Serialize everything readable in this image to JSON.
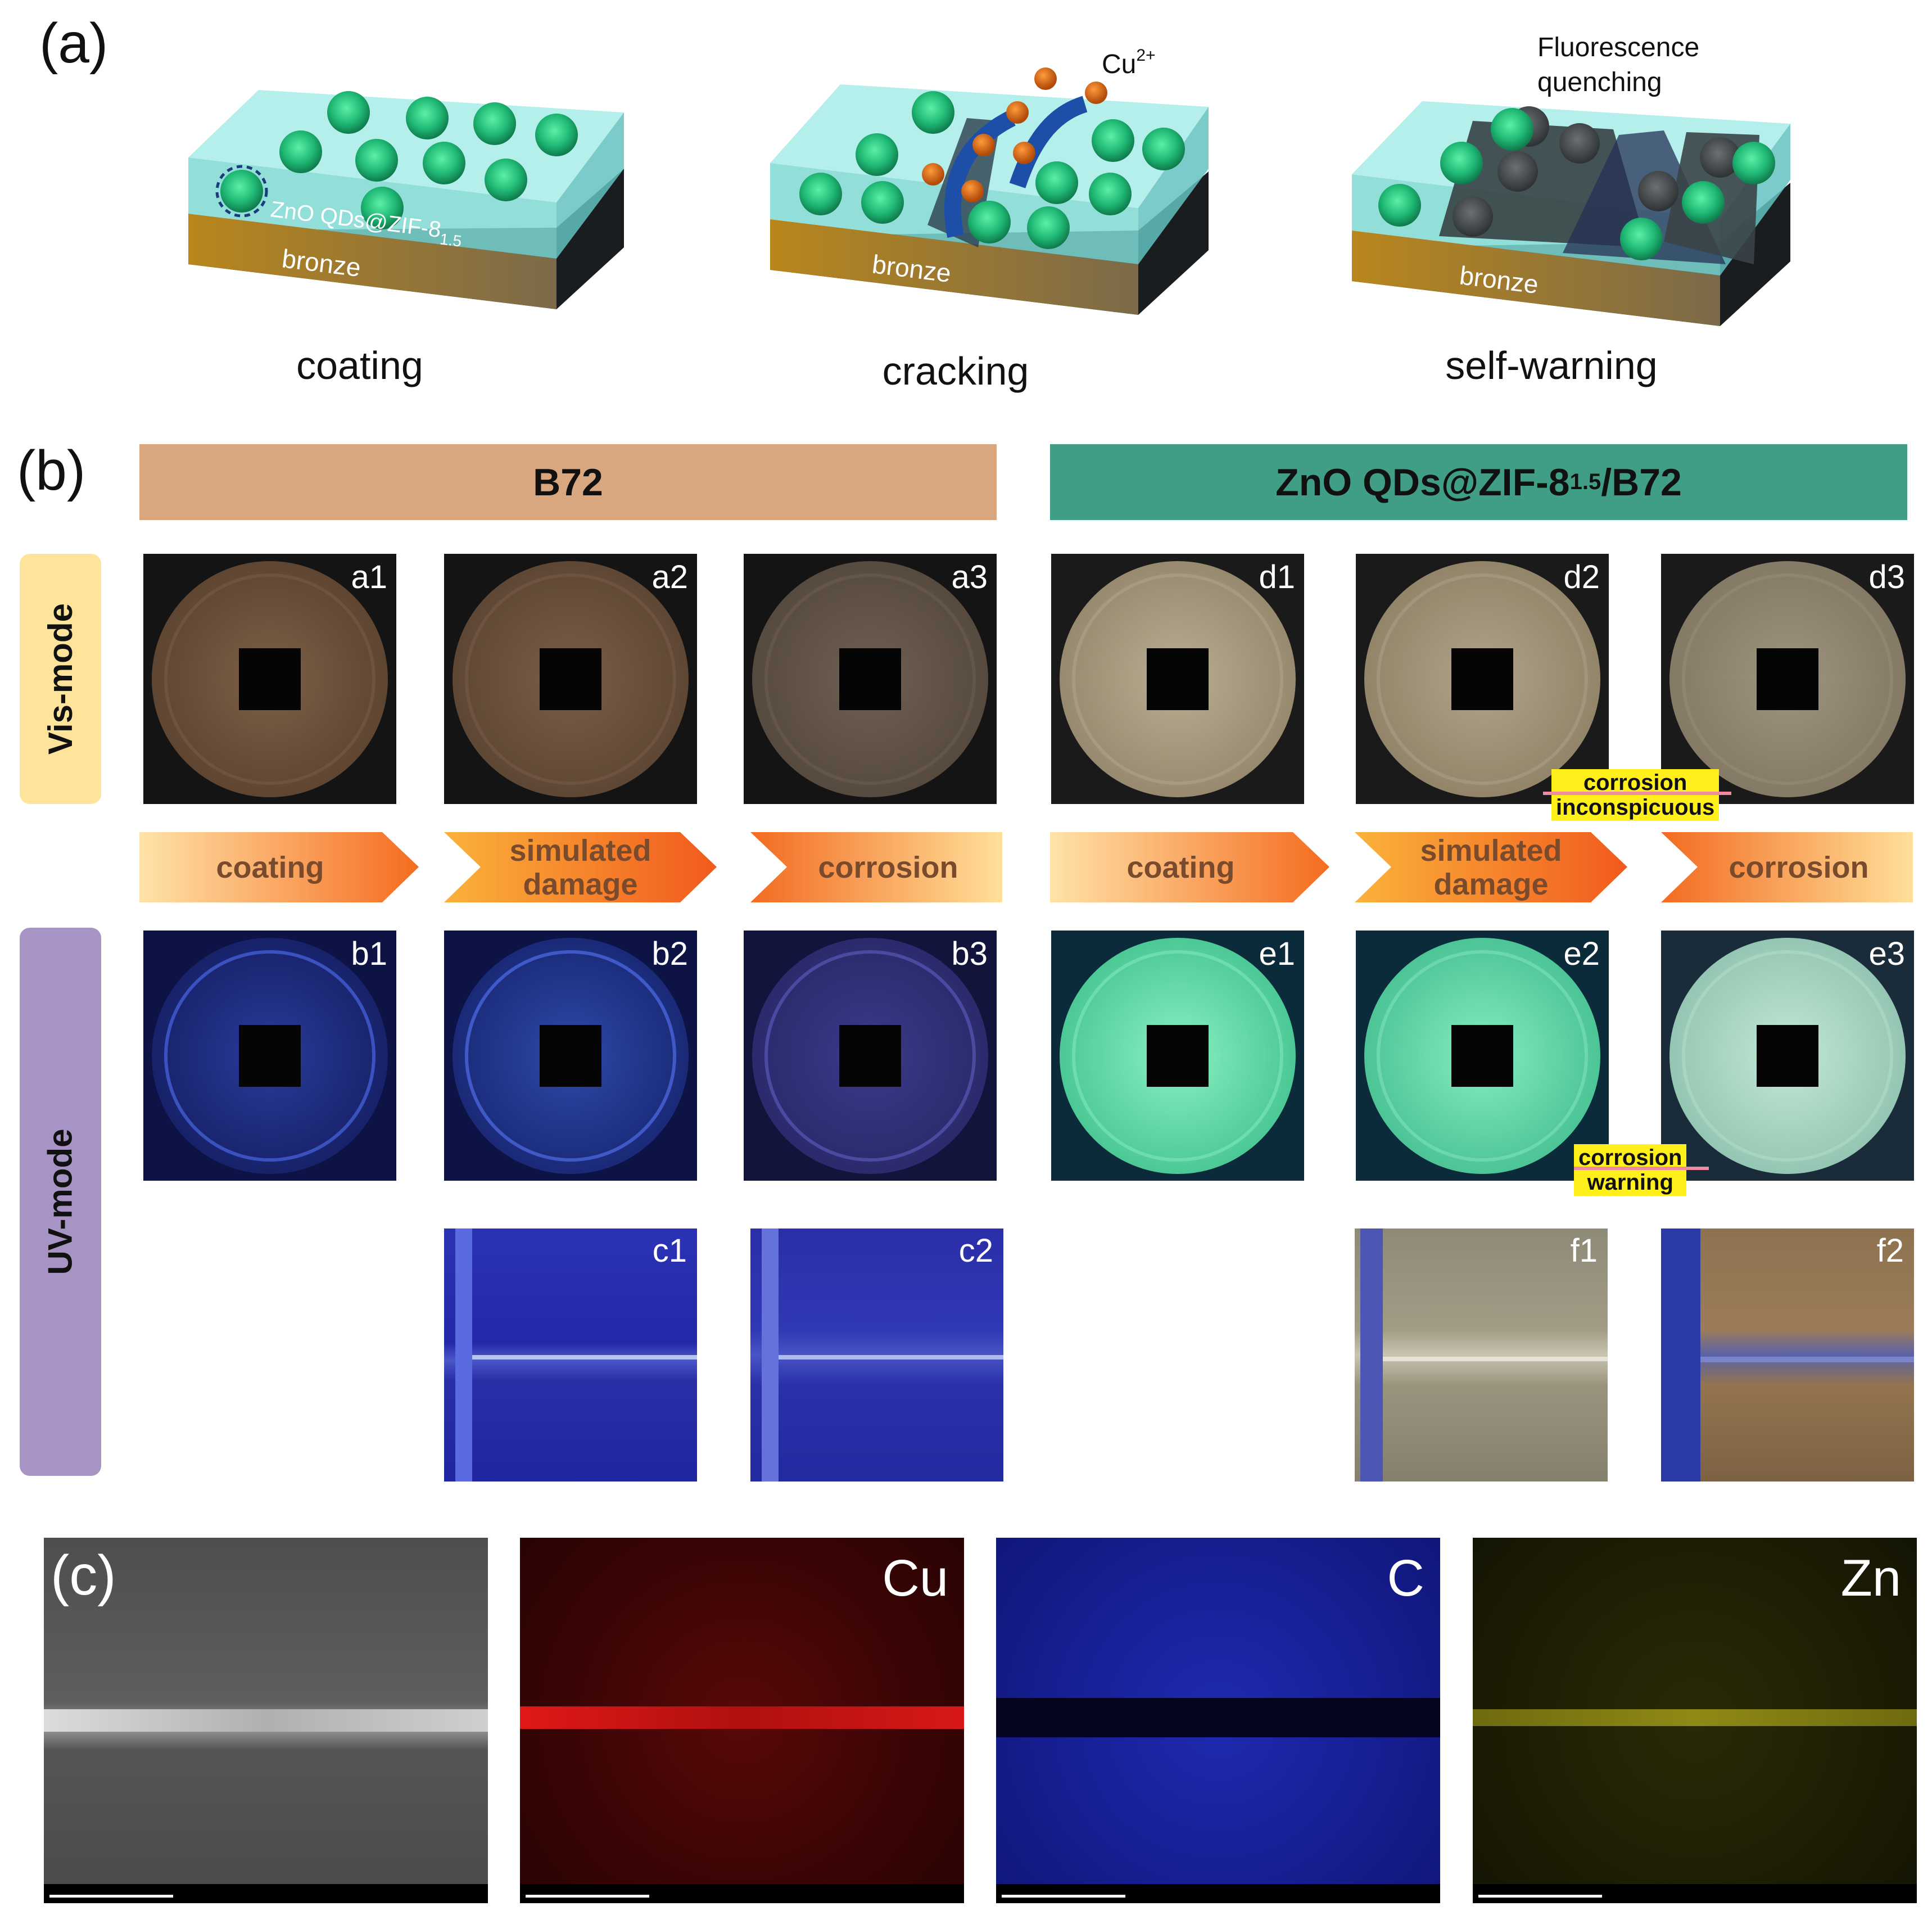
{
  "panel_a": {
    "label": "(a)",
    "steps": [
      {
        "layer_label": "bronze",
        "coating_label": "ZnO QDs@ZIF-8",
        "coating_sub": "1.5",
        "caption": "coating"
      },
      {
        "layer_label": "bronze",
        "ion_label": "Cu",
        "ion_sup": "2+",
        "caption": "cracking"
      },
      {
        "layer_label": "bronze",
        "note_line1": "Fluorescence",
        "note_line2": "quenching",
        "caption": "self-warning"
      }
    ]
  },
  "panel_b": {
    "label": "(b)",
    "banners": {
      "left": "B72",
      "right_main": "ZnO QDs@ZIF-8",
      "right_sub": "1.5",
      "right_tail": "/B72",
      "left_color": "#d9a77f",
      "right_color": "#3f9e85"
    },
    "modes": {
      "vis": "Vis-mode",
      "uv": "UV-mode"
    },
    "vis_row": [
      "a1",
      "a2",
      "a3",
      "d1",
      "d2",
      "d3"
    ],
    "uv_row": [
      "b1",
      "b2",
      "b3",
      "e1",
      "e2",
      "e3"
    ],
    "micro_row": [
      "c1",
      "c2",
      "f1",
      "f2"
    ],
    "arrows": {
      "coating": "coating",
      "damage_line1": "simulated",
      "damage_line2": "damage",
      "corrosion": "corrosion"
    },
    "notes": {
      "vis_line1": "corrosion",
      "vis_line2": "inconspicuous",
      "uv_line1": "corrosion",
      "uv_line2": "warning"
    }
  },
  "panel_c": {
    "label": "(c)",
    "maps": [
      "Cu",
      "C",
      "Zn"
    ],
    "colors": {
      "Cu": "#c41010",
      "C": "#1c22c8",
      "Zn": "#a9a414"
    }
  }
}
